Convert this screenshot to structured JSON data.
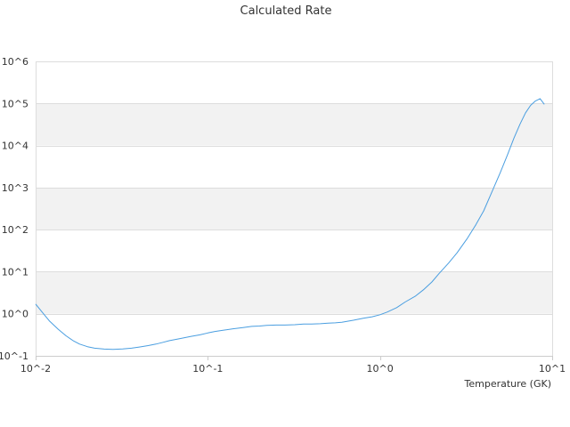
{
  "chart_data": {
    "type": "line",
    "title": "Calculated Rate",
    "xlabel": "Temperature (GK)",
    "ylabel": "",
    "x_scale": "log",
    "y_scale": "log",
    "xlim": [
      0.01,
      10
    ],
    "ylim": [
      0.1,
      1000000
    ],
    "x_ticks": [
      {
        "value": 0.01,
        "label": "10^-2"
      },
      {
        "value": 0.1,
        "label": "10^-1"
      },
      {
        "value": 1,
        "label": "10^0"
      },
      {
        "value": 10,
        "label": "10^1"
      }
    ],
    "y_ticks": [
      {
        "value": 1000000,
        "label": "10^6"
      },
      {
        "value": 100000,
        "label": "10^5"
      },
      {
        "value": 10000,
        "label": "10^4"
      },
      {
        "value": 1000,
        "label": "10^3"
      },
      {
        "value": 100,
        "label": "10^2"
      },
      {
        "value": 10,
        "label": "10^1"
      },
      {
        "value": 1,
        "label": "10^0"
      },
      {
        "value": 0.1,
        "label": "10^-1"
      }
    ],
    "grid": true,
    "legend": "none",
    "colors": {
      "line": "#4a9ee0",
      "band": "#f2f2f2",
      "grid": "#dddddd",
      "text": "#333333"
    },
    "series": [
      {
        "x": [
          0.01,
          0.011,
          0.012,
          0.0135,
          0.015,
          0.0165,
          0.018,
          0.02,
          0.022,
          0.025,
          0.028,
          0.032,
          0.036,
          0.04,
          0.045,
          0.05,
          0.055,
          0.06,
          0.07,
          0.08,
          0.09,
          0.1,
          0.11,
          0.125,
          0.14,
          0.16,
          0.18,
          0.2,
          0.22,
          0.25,
          0.28,
          0.32,
          0.36,
          0.4,
          0.45,
          0.5,
          0.55,
          0.6,
          0.7,
          0.8,
          0.9,
          1.0,
          1.1,
          1.25,
          1.4,
          1.6,
          1.8,
          2.0,
          2.2,
          2.5,
          2.8,
          3.2,
          3.6,
          4.0,
          4.5,
          5.0,
          5.5,
          6.0,
          6.5,
          7.0,
          7.5,
          8.0,
          8.5,
          9.0
        ],
        "y": [
          1.7,
          1.05,
          0.68,
          0.43,
          0.3,
          0.23,
          0.19,
          0.165,
          0.152,
          0.145,
          0.142,
          0.146,
          0.152,
          0.162,
          0.175,
          0.19,
          0.21,
          0.23,
          0.26,
          0.29,
          0.315,
          0.35,
          0.38,
          0.41,
          0.44,
          0.47,
          0.5,
          0.51,
          0.53,
          0.54,
          0.54,
          0.55,
          0.57,
          0.57,
          0.58,
          0.6,
          0.61,
          0.63,
          0.7,
          0.78,
          0.85,
          0.95,
          1.1,
          1.4,
          1.9,
          2.6,
          3.8,
          5.7,
          9.0,
          16,
          28,
          60,
          130,
          280,
          850,
          2300,
          6000,
          15000,
          32000,
          60000,
          90000,
          115000,
          130000,
          95000
        ]
      }
    ]
  }
}
